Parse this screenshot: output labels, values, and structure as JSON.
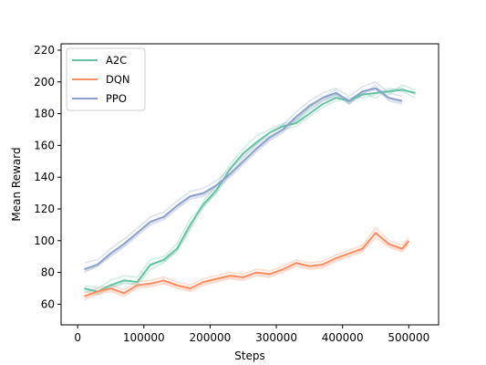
{
  "chart_data": {
    "type": "line",
    "title": "",
    "xlabel": "Steps",
    "ylabel": "Mean Reward",
    "xlim": [
      -25000,
      545000
    ],
    "ylim": [
      47,
      224
    ],
    "xticks": [
      0,
      100000,
      200000,
      300000,
      400000,
      500000
    ],
    "xtick_labels": [
      "0",
      "100000",
      "200000",
      "300000",
      "400000",
      "500000"
    ],
    "yticks": [
      60,
      80,
      100,
      120,
      140,
      160,
      180,
      200,
      220
    ],
    "ytick_labels": [
      "60",
      "80",
      "100",
      "120",
      "140",
      "160",
      "180",
      "200",
      "220"
    ],
    "grid": false,
    "legend_position": "top-left",
    "series": [
      {
        "name": "A2C",
        "color": "#66c2a5",
        "x": [
          10000,
          30000,
          50000,
          70000,
          90000,
          110000,
          130000,
          150000,
          170000,
          190000,
          210000,
          230000,
          250000,
          270000,
          290000,
          310000,
          330000,
          350000,
          370000,
          390000,
          410000,
          430000,
          450000,
          470000,
          490000,
          510000
        ],
        "mean": [
          70,
          68,
          72,
          75,
          74,
          85,
          88,
          95,
          110,
          123,
          132,
          145,
          155,
          162,
          168,
          172,
          174,
          180,
          186,
          190,
          188,
          192,
          193,
          194,
          195,
          193
        ],
        "runs": [
          [
            68,
            66,
            70,
            74,
            72,
            82,
            86,
            94,
            108,
            125,
            135,
            148,
            158,
            166,
            170,
            174,
            176,
            184,
            190,
            195,
            186,
            194,
            196,
            192,
            198,
            195
          ],
          [
            72,
            70,
            75,
            78,
            77,
            88,
            90,
            98,
            114,
            122,
            130,
            142,
            152,
            160,
            166,
            170,
            172,
            178,
            184,
            188,
            190,
            190,
            192,
            196,
            194,
            190
          ],
          [
            69,
            67,
            71,
            73,
            73,
            84,
            87,
            93,
            107,
            121,
            131,
            146,
            155,
            161,
            168,
            173,
            175,
            182,
            188,
            192,
            187,
            193,
            190,
            195,
            196,
            192
          ]
        ]
      },
      {
        "name": "DQN",
        "color": "#fc8d62",
        "x": [
          10000,
          30000,
          50000,
          70000,
          90000,
          110000,
          130000,
          150000,
          170000,
          190000,
          210000,
          230000,
          250000,
          270000,
          290000,
          310000,
          330000,
          350000,
          370000,
          390000,
          410000,
          430000,
          450000,
          470000,
          490000,
          500000
        ],
        "mean": [
          65,
          68,
          70,
          67,
          72,
          73,
          75,
          72,
          70,
          74,
          76,
          78,
          77,
          80,
          79,
          82,
          86,
          84,
          85,
          89,
          92,
          95,
          105,
          98,
          95,
          100
        ],
        "runs": [
          [
            63,
            66,
            68,
            65,
            70,
            71,
            73,
            70,
            68,
            72,
            74,
            76,
            75,
            78,
            77,
            80,
            84,
            82,
            83,
            87,
            90,
            93,
            102,
            96,
            93,
            98
          ],
          [
            67,
            70,
            72,
            69,
            74,
            75,
            77,
            74,
            72,
            76,
            78,
            80,
            79,
            82,
            81,
            84,
            88,
            86,
            87,
            91,
            94,
            97,
            108,
            100,
            97,
            102
          ],
          [
            64,
            67,
            69,
            66,
            71,
            72,
            74,
            71,
            69,
            73,
            75,
            77,
            76,
            79,
            78,
            81,
            85,
            83,
            84,
            88,
            91,
            94,
            104,
            97,
            94,
            99
          ]
        ]
      },
      {
        "name": "PPO",
        "color": "#8da0cb",
        "x": [
          10000,
          30000,
          50000,
          70000,
          90000,
          110000,
          130000,
          150000,
          170000,
          190000,
          210000,
          230000,
          250000,
          270000,
          290000,
          310000,
          330000,
          350000,
          370000,
          390000,
          410000,
          430000,
          450000,
          470000,
          490000
        ],
        "mean": [
          82,
          85,
          92,
          98,
          105,
          112,
          115,
          122,
          128,
          130,
          135,
          142,
          150,
          158,
          165,
          170,
          178,
          185,
          190,
          193,
          188,
          194,
          196,
          190,
          188
        ],
        "runs": [
          [
            80,
            84,
            90,
            96,
            103,
            110,
            113,
            120,
            126,
            128,
            133,
            140,
            148,
            156,
            163,
            168,
            176,
            183,
            188,
            191,
            186,
            192,
            198,
            188,
            186
          ],
          [
            86,
            88,
            95,
            101,
            108,
            115,
            118,
            125,
            131,
            133,
            138,
            145,
            153,
            161,
            168,
            173,
            181,
            188,
            193,
            196,
            191,
            197,
            200,
            193,
            191
          ],
          [
            81,
            84,
            91,
            97,
            104,
            111,
            114,
            121,
            127,
            129,
            134,
            141,
            149,
            157,
            164,
            169,
            177,
            184,
            189,
            192,
            187,
            193,
            195,
            189,
            187
          ]
        ]
      }
    ]
  }
}
